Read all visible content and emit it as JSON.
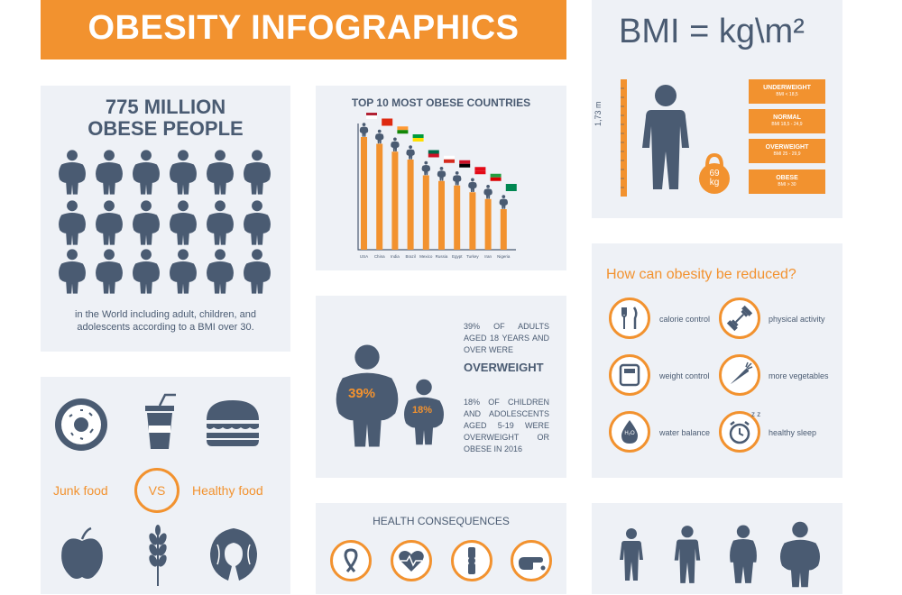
{
  "title": "OBESITY INFOGRAPHICS",
  "people": {
    "heading_line1": "775 MILLION",
    "heading_line2": "OBESE PEOPLE",
    "caption": "in the World including adult, children, and adolescents according to a BMI over 30."
  },
  "countries": {
    "heading": "TOP 10 MOST OBESE COUNTRIES",
    "chart_data": {
      "type": "bar",
      "title": "TOP 10 MOST OBESE COUNTRIES",
      "categories": [
        "USA",
        "China",
        "India",
        "Brazil",
        "Mexico",
        "Russia",
        "Egypt",
        "Turkey",
        "Iran",
        "Nigeria"
      ],
      "values": [
        100,
        94,
        87,
        80,
        66,
        61,
        57,
        51,
        45,
        36
      ],
      "ylim": [
        0,
        100
      ]
    }
  },
  "bmi": {
    "formula": "BMI = kg\\m²",
    "height_label": "1,73 m",
    "weight_label_num": "69",
    "weight_label_unit": "kg",
    "categories": [
      {
        "title": "UNDERWEIGHT",
        "range": "BMI < 18,5"
      },
      {
        "title": "NORMAL",
        "range": "BMI 18,5 - 24,9"
      },
      {
        "title": "OVERWEIGHT",
        "range": "BMI 25 - 29,9"
      },
      {
        "title": "OBESE",
        "range": "BMI > 30"
      }
    ]
  },
  "overweight": {
    "adult_pct": "39%",
    "child_pct": "18%",
    "adult_text": "39% OF ADULTS AGED 18 YEARS AND OVER WERE",
    "highlight": "OVERWEIGHT",
    "child_text": "18% OF CHILDREN AND ADOLESCENTS AGED 5-19 WERE OVERWEIGHT OR OBESE IN 2016"
  },
  "food": {
    "junk_label": "Junk food",
    "vs_label": "VS",
    "healthy_label": "Healthy food"
  },
  "reduce": {
    "heading": "How can obesity be reduced?",
    "items": [
      {
        "label": "calorie control",
        "icon": "cutlery-icon"
      },
      {
        "label": "physical activity",
        "icon": "dumbbell-icon"
      },
      {
        "label": "weight control",
        "icon": "scale-icon"
      },
      {
        "label": "more vegetables",
        "icon": "carrot-icon"
      },
      {
        "label": "water balance",
        "icon": "water-drop-icon"
      },
      {
        "label": "healthy sleep",
        "icon": "alarm-clock-icon"
      }
    ],
    "water_symbol": "H₂O",
    "zz": "z z"
  },
  "consequences": {
    "heading": "HEALTH CONSEQUENCES"
  },
  "colors": {
    "accent": "#f2922f",
    "slate": "#4a5b72",
    "panel": "#eef1f6"
  }
}
